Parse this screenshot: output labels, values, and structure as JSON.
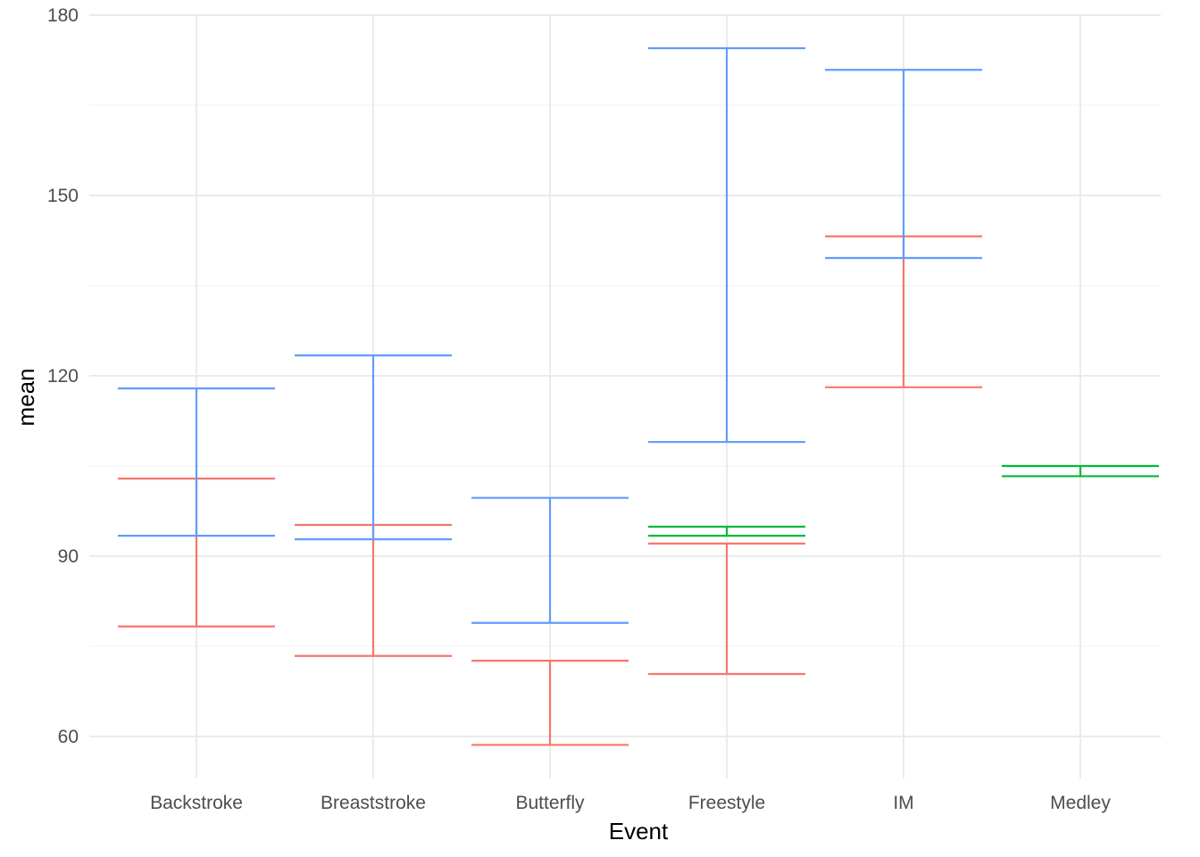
{
  "chart_data": {
    "type": "errorbar",
    "xlabel": "Event",
    "ylabel": "mean",
    "categories": [
      "Backstroke",
      "Breaststroke",
      "Butterfly",
      "Freestyle",
      "IM",
      "Medley"
    ],
    "ylim": [
      53,
      180
    ],
    "yticks": [
      60,
      90,
      120,
      150,
      180
    ],
    "grid": true,
    "legend": "none",
    "series": [
      {
        "color": "#F8766D",
        "bars": [
          {
            "category": "Backstroke",
            "ymin": 78.3,
            "ymax": 102.9
          },
          {
            "category": "Breaststroke",
            "ymin": 73.4,
            "ymax": 95.2
          },
          {
            "category": "Butterfly",
            "ymin": 58.6,
            "ymax": 72.6
          },
          {
            "category": "Freestyle",
            "ymin": 70.4,
            "ymax": 92.1
          },
          {
            "category": "IM",
            "ymin": 118.1,
            "ymax": 143.2
          }
        ]
      },
      {
        "color": "#00BA38",
        "bars": [
          {
            "category": "Freestyle",
            "ymin": 93.4,
            "ymax": 94.9
          },
          {
            "category": "Medley",
            "ymin": 103.3,
            "ymax": 105.0
          }
        ]
      },
      {
        "color": "#619CFF",
        "bars": [
          {
            "category": "Backstroke",
            "ymin": 93.4,
            "ymax": 117.9
          },
          {
            "category": "Breaststroke",
            "ymin": 92.8,
            "ymax": 123.4
          },
          {
            "category": "Butterfly",
            "ymin": 78.9,
            "ymax": 99.7
          },
          {
            "category": "Freestyle",
            "ymin": 109.0,
            "ymax": 174.5
          },
          {
            "category": "IM",
            "ymin": 139.6,
            "ymax": 170.9
          }
        ]
      }
    ]
  }
}
